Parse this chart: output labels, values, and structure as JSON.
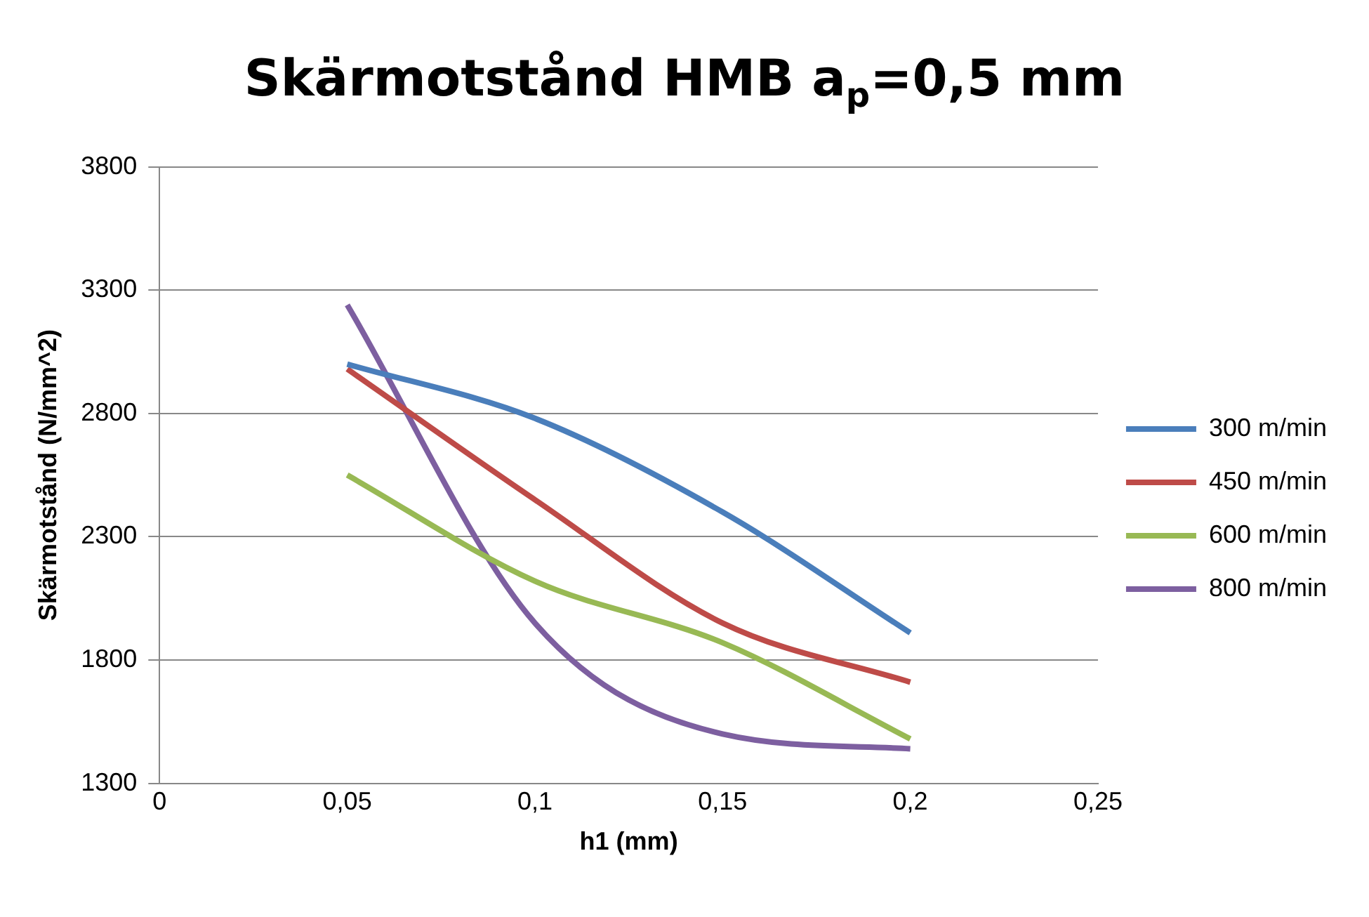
{
  "chart_data": {
    "type": "line",
    "title": "Skärmotstånd HMB a$_{p}$=0,5 mm",
    "xlabel": "h1 (mm)",
    "ylabel": "Skärmotstånd (N/mm^2)",
    "x": [
      0.05,
      0.1,
      0.15,
      0.2
    ],
    "series": [
      {
        "name": "300 m/min",
        "color": "#4a7ebb",
        "values": [
          3000,
          2780,
          2400,
          1910
        ]
      },
      {
        "name": "450 m/min",
        "color": "#be4b48",
        "values": [
          2980,
          2450,
          1950,
          1710
        ]
      },
      {
        "name": "600 m/min",
        "color": "#98b954",
        "values": [
          2550,
          2120,
          1870,
          1480
        ]
      },
      {
        "name": "800 m/min",
        "color": "#7d5fa0",
        "values": [
          3240,
          1950,
          1500,
          1440
        ]
      }
    ],
    "xlim": [
      0,
      0.25
    ],
    "xticks": [
      0,
      {
        "value": 0.05,
        "label": "0,05"
      },
      {
        "value": 0.1,
        "label": "0,1"
      },
      {
        "value": 0.15,
        "label": "0,15"
      },
      {
        "value": 0.2,
        "label": "0,2"
      },
      {
        "value": 0.25,
        "label": "0,25"
      }
    ],
    "ylim": [
      1300,
      3800
    ],
    "yticks": [
      1300,
      1800,
      2300,
      2800,
      3300,
      3800
    ],
    "grid": "y",
    "legend": "right",
    "marker": "none",
    "line_style": "solid"
  }
}
